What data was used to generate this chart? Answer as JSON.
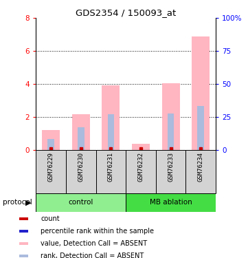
{
  "title": "GDS2354 / 150093_at",
  "samples": [
    "GSM76229",
    "GSM76230",
    "GSM76231",
    "GSM76232",
    "GSM76233",
    "GSM76234"
  ],
  "bar_values": [
    1.2,
    2.15,
    3.9,
    0.35,
    4.05,
    6.9
  ],
  "rank_values": [
    0.65,
    1.35,
    2.15,
    0.0,
    2.2,
    2.65
  ],
  "ylim_left": [
    0,
    8
  ],
  "ylim_right": [
    0,
    100
  ],
  "yticks_left": [
    0,
    2,
    4,
    6,
    8
  ],
  "yticks_right": [
    0,
    25,
    50,
    75,
    100
  ],
  "ytick_labels_right": [
    "0",
    "25",
    "50",
    "75",
    "100%"
  ],
  "bar_color": "#FFB6C1",
  "rank_color": "#AABBDD",
  "dot_red": "#CC0000",
  "dot_blue": "#2222CC",
  "sample_bg": "#d3d3d3",
  "control_color": "#90EE90",
  "ablation_color": "#44DD44",
  "legend_items": [
    {
      "label": "count",
      "color": "#CC0000"
    },
    {
      "label": "percentile rank within the sample",
      "color": "#2222CC"
    },
    {
      "label": "value, Detection Call = ABSENT",
      "color": "#FFB6C1"
    },
    {
      "label": "rank, Detection Call = ABSENT",
      "color": "#AABBDD"
    }
  ],
  "protocol_label": "protocol"
}
